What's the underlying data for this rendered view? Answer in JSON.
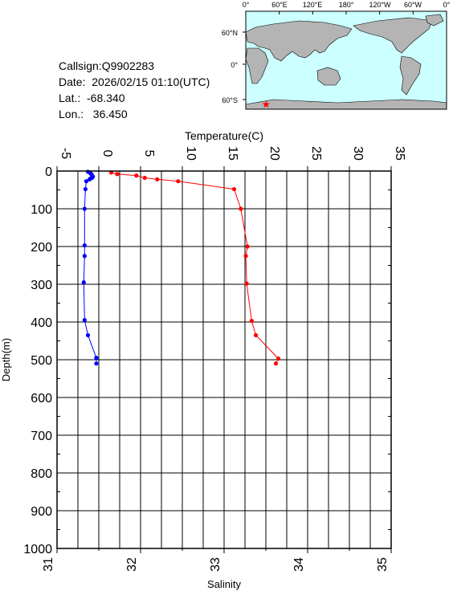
{
  "header": {
    "callsign": "Callsign:Q9902283",
    "date": "Date:  2026/02/15 01:10(UTC)",
    "lat": "Lat.:  -68.340",
    "lon": "Lon.:   36.450"
  },
  "map": {
    "lon_labels": [
      "0°",
      "60°E",
      "120°E",
      "180°",
      "120°W",
      "60°W",
      "0°"
    ],
    "lat_labels": [
      "60°N",
      "0°",
      "60°S"
    ],
    "ocean_color": "#ccffff",
    "land_color": "#b4b4b4",
    "marker_color": "#ff0000",
    "marker_lon": 36.45,
    "marker_lat": -68.34
  },
  "chart_data": {
    "type": "line",
    "top_axis_label": "Temperature(C)",
    "bottom_axis_label": "Salinity",
    "left_axis_label": "Depth(m)",
    "depth_range": [
      0,
      1000
    ],
    "depth_ticks": [
      "0",
      "100",
      "200",
      "300",
      "400",
      "500",
      "600",
      "700",
      "800",
      "900",
      "1000"
    ],
    "temperature_range": [
      -5,
      35
    ],
    "temperature_ticks": [
      "-5",
      "0",
      "5",
      "10",
      "15",
      "20",
      "25",
      "30",
      "35"
    ],
    "salinity_range": [
      31,
      35
    ],
    "salinity_ticks": [
      "31",
      "32",
      "33",
      "34",
      "35"
    ],
    "grid": true,
    "temperature_color": "#ff0000",
    "salinity_color": "#0000ff",
    "temperature": {
      "depth": [
        4,
        8,
        12,
        18,
        22,
        27,
        48,
        100,
        200,
        225,
        298,
        397,
        435,
        497,
        510
      ],
      "value": [
        1.5,
        2.2,
        4.5,
        5.5,
        7.0,
        9.5,
        16.2,
        17.0,
        17.8,
        17.6,
        17.7,
        18.3,
        18.8,
        21.5,
        21.2
      ]
    },
    "salinity": {
      "depth": [
        2,
        4,
        6,
        8,
        12,
        15,
        18,
        20,
        22,
        27,
        48,
        100,
        197,
        225,
        295,
        395,
        435,
        495,
        510
      ],
      "value": [
        31.37,
        31.39,
        31.4,
        31.41,
        31.42,
        31.43,
        31.42,
        31.4,
        31.39,
        31.35,
        31.34,
        31.33,
        31.33,
        31.33,
        31.32,
        31.33,
        31.37,
        31.47,
        31.47
      ]
    }
  }
}
